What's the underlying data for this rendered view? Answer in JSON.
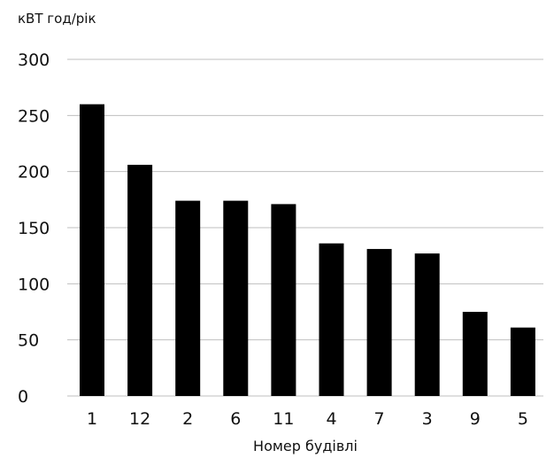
{
  "chart_data": {
    "type": "bar",
    "title": "",
    "ylabel": "кВТ год/рік",
    "xlabel": "Номер будівлі",
    "categories": [
      "1",
      "12",
      "2",
      "6",
      "11",
      "4",
      "7",
      "3",
      "9",
      "5"
    ],
    "values": [
      260,
      206,
      174,
      174,
      171,
      136,
      131,
      127,
      75,
      61
    ],
    "ylim": [
      0,
      300
    ],
    "yticks": [
      0,
      50,
      100,
      150,
      200,
      250,
      300
    ],
    "grid": true,
    "colors": {
      "bar": "#000000",
      "grid": "#bfbfbf",
      "text": "#111111"
    }
  }
}
